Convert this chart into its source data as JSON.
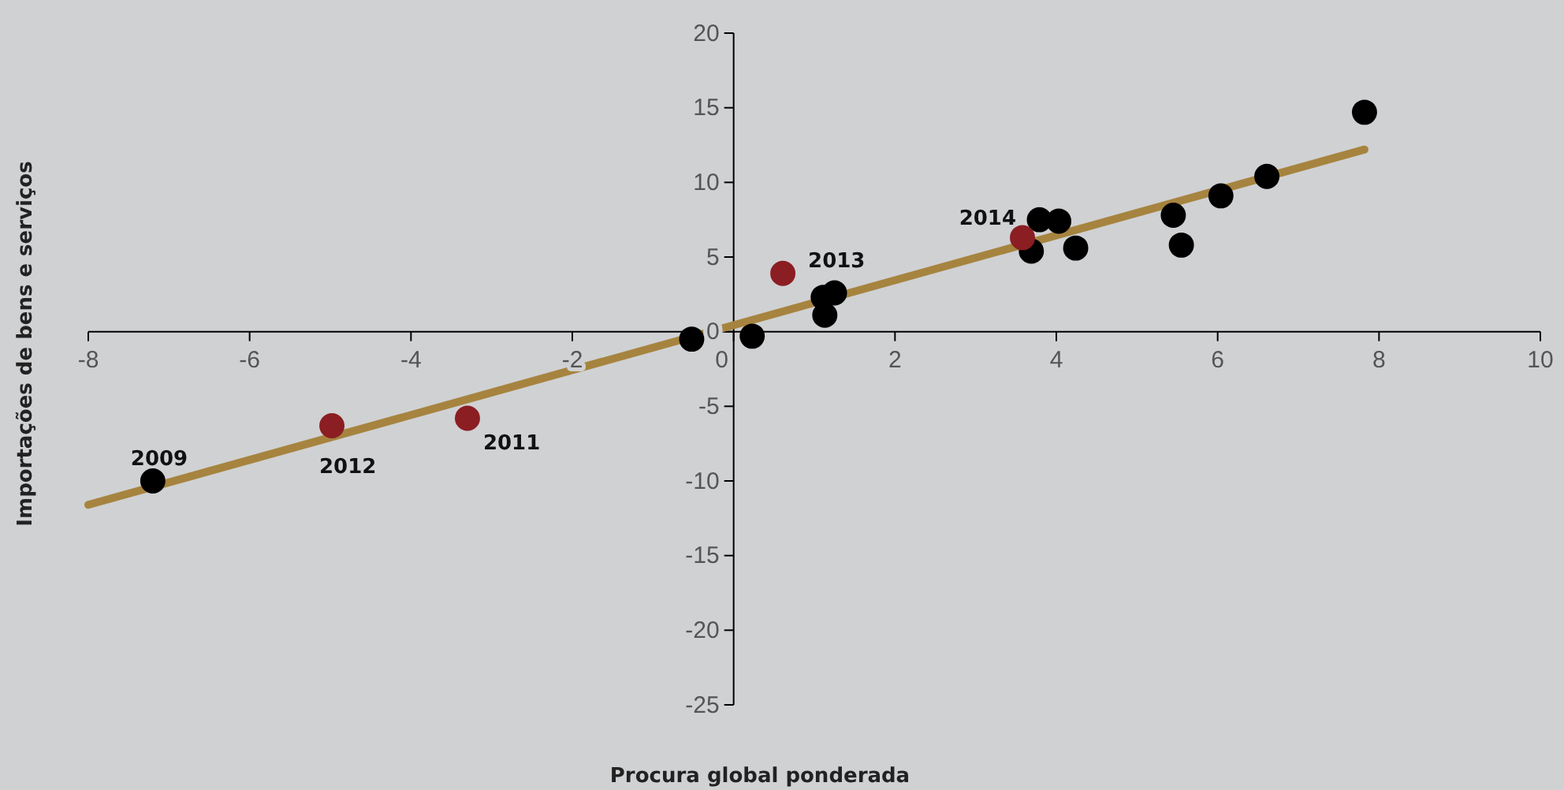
{
  "chart_data": {
    "type": "scatter",
    "xlabel": "Procura global ponderada",
    "ylabel": "Importações de bens e serviços",
    "xlim": [
      -8,
      10
    ],
    "xticks": [
      -8,
      -6,
      -4,
      -2,
      0,
      2,
      4,
      6,
      8,
      10
    ],
    "ylim": [
      -25,
      20
    ],
    "yticks": [
      -25,
      -20,
      -15,
      -10,
      -5,
      0,
      5,
      10,
      15,
      20
    ],
    "grid": false,
    "series": [
      {
        "color": "#000000",
        "x": [
          -7.2,
          -0.52,
          0.23,
          1.11,
          1.25,
          1.13,
          3.69,
          3.79,
          4.03,
          4.24,
          5.45,
          5.55,
          6.04,
          6.61,
          7.82
        ],
        "values": [
          -10.0,
          -0.5,
          -0.3,
          2.3,
          2.6,
          1.1,
          5.4,
          7.5,
          7.4,
          5.6,
          7.8,
          5.8,
          9.1,
          10.4,
          14.7
        ]
      },
      {
        "color": "#8b1e22",
        "x": [
          -4.98,
          -3.3,
          0.61,
          3.58
        ],
        "values": [
          -6.3,
          -5.8,
          3.9,
          6.3
        ]
      },
      {
        "type": "line",
        "color": "#a6843f",
        "x": [
          -8,
          7.82
        ],
        "values": [
          -11.6,
          12.2
        ]
      }
    ],
    "annotations": [
      {
        "text": "2009",
        "x": -7.2,
        "y": -10.0
      },
      {
        "text": "2012",
        "x": -4.98,
        "y": -6.3
      },
      {
        "text": "2011",
        "x": -3.3,
        "y": -5.8
      },
      {
        "text": "2013",
        "x": 0.61,
        "y": 3.9
      },
      {
        "text": "2014",
        "x": 3.58,
        "y": 6.3
      }
    ]
  }
}
